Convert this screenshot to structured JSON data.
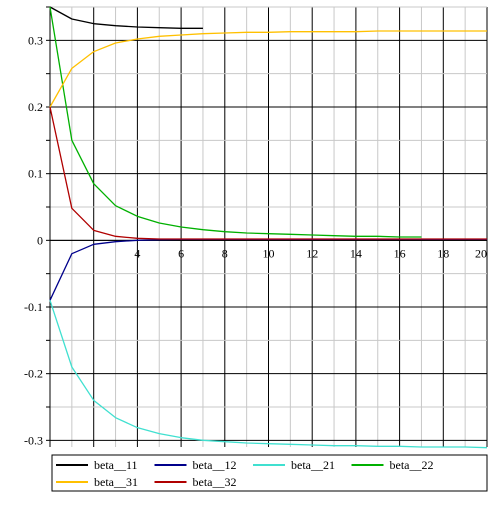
{
  "chart_data": {
    "type": "line",
    "title": "",
    "xlabel": "",
    "ylabel": "",
    "xlim": [
      0,
      20
    ],
    "ylim": [
      -0.31,
      0.35
    ],
    "grid": true,
    "legend_position": "bottom",
    "x_ticks": [
      4,
      6,
      8,
      10,
      12,
      14,
      16,
      18,
      20
    ],
    "x_tick_labels": [
      "4",
      "6",
      "8",
      "10",
      "12",
      "14",
      "16",
      "18",
      "20"
    ],
    "y_ticks": [
      0.3,
      0.2,
      0.1,
      0,
      -0.1,
      -0.2,
      -0.3
    ],
    "y_tick_labels": [
      "0.3",
      "0.2",
      "0.1",
      "0",
      "-0.1",
      "-0.2",
      "-0.3"
    ],
    "series": [
      {
        "name": "beta__11",
        "color": "#000000",
        "x": [
          0,
          1,
          2,
          3,
          4,
          5,
          6,
          7
        ],
        "y": [
          0.35,
          0.332,
          0.325,
          0.322,
          0.32,
          0.319,
          0.318,
          0.318
        ]
      },
      {
        "name": "beta__12",
        "color": "#00008b",
        "x": [
          0,
          1,
          2,
          3,
          4,
          5,
          6,
          7,
          8,
          10,
          12,
          14,
          16,
          18,
          20
        ],
        "y": [
          -0.09,
          -0.02,
          -0.006,
          -0.002,
          0.0,
          0.001,
          0.0015,
          0.0015,
          0.0015,
          0.0015,
          0.0015,
          0.0015,
          0.0015,
          0.0015,
          0.0015
        ]
      },
      {
        "name": "beta__21",
        "color": "#40e0d0",
        "x": [
          0,
          1,
          2,
          3,
          4,
          5,
          6,
          7,
          8,
          9,
          10,
          11,
          12,
          13,
          14,
          15,
          16,
          17,
          18,
          19,
          20
        ],
        "y": [
          -0.09,
          -0.19,
          -0.24,
          -0.266,
          -0.281,
          -0.29,
          -0.296,
          -0.3,
          -0.302,
          -0.304,
          -0.305,
          -0.306,
          -0.307,
          -0.308,
          -0.308,
          -0.309,
          -0.309,
          -0.31,
          -0.31,
          -0.31,
          -0.311
        ]
      },
      {
        "name": "beta__22",
        "color": "#00b000",
        "x": [
          0,
          1,
          2,
          3,
          4,
          5,
          6,
          7,
          8,
          9,
          10,
          11,
          12,
          13,
          14,
          15,
          16,
          17
        ],
        "y": [
          0.35,
          0.15,
          0.085,
          0.052,
          0.036,
          0.026,
          0.02,
          0.016,
          0.013,
          0.011,
          0.01,
          0.009,
          0.008,
          0.007,
          0.006,
          0.006,
          0.005,
          0.005
        ]
      },
      {
        "name": "beta__31",
        "color": "#ffc000",
        "x": [
          0,
          1,
          2,
          3,
          4,
          5,
          6,
          7,
          8,
          9,
          10,
          11,
          12,
          13,
          14,
          15,
          16,
          17,
          18,
          19,
          20
        ],
        "y": [
          0.2,
          0.258,
          0.283,
          0.296,
          0.302,
          0.306,
          0.308,
          0.31,
          0.311,
          0.312,
          0.312,
          0.313,
          0.313,
          0.313,
          0.313,
          0.314,
          0.314,
          0.314,
          0.314,
          0.314,
          0.314
        ]
      },
      {
        "name": "beta__32",
        "color": "#b00000",
        "x": [
          0,
          1,
          2,
          3,
          4,
          5,
          6,
          8,
          10,
          12,
          14,
          16,
          18,
          20
        ],
        "y": [
          0.2,
          0.048,
          0.015,
          0.006,
          0.003,
          0.002,
          0.002,
          0.002,
          0.002,
          0.002,
          0.002,
          0.002,
          0.002,
          0.002
        ]
      }
    ]
  }
}
